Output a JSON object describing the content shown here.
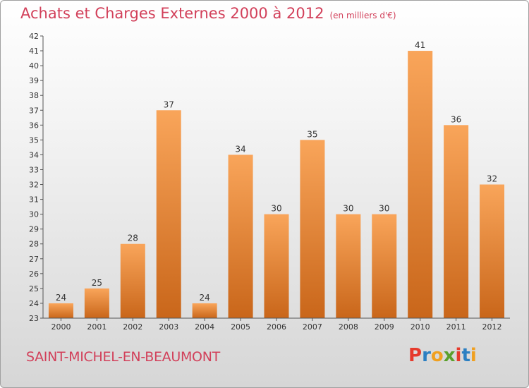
{
  "header": {
    "title": "Achats et Charges Externes 2000 à 2012",
    "subtitle": "(en milliers d'€)"
  },
  "footer": {
    "commune": "SAINT-MICHEL-EN-BEAUMONT",
    "logo": "Proxiti",
    "logo_colors": [
      "#e63a2c",
      "#2b7fc2",
      "#f0a020",
      "#5aa02c",
      "#e63a2c",
      "#2b7fc2",
      "#f0a020"
    ]
  },
  "colors": {
    "bar_light": "#f9a55a",
    "bar_dark": "#c9661a",
    "axis": "#555555",
    "text_accent": "#d2405a"
  },
  "chart_data": {
    "type": "bar",
    "categories": [
      "2000",
      "2001",
      "2002",
      "2003",
      "2004",
      "2005",
      "2006",
      "2007",
      "2008",
      "2009",
      "2010",
      "2011",
      "2012"
    ],
    "values": [
      24,
      25,
      28,
      37,
      24,
      34,
      30,
      35,
      30,
      30,
      41,
      36,
      32
    ],
    "ylim": [
      23,
      42
    ],
    "yticks": [
      23,
      24,
      25,
      26,
      27,
      28,
      29,
      30,
      31,
      32,
      33,
      34,
      35,
      36,
      37,
      38,
      39,
      40,
      41,
      42
    ],
    "xlabel": "",
    "ylabel": "",
    "grid": false,
    "legend": "none"
  }
}
